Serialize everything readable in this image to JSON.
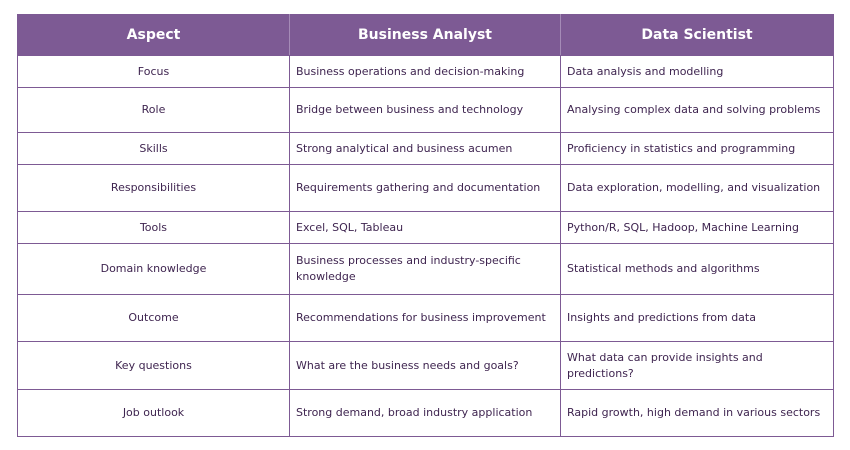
{
  "headers": [
    "Aspect",
    "Business Analyst",
    "Data Scientist"
  ],
  "rows": [
    {
      "aspect": "Focus",
      "business_analyst": "Business operations and decision-making",
      "data_scientist": "Data analysis and modelling"
    },
    {
      "aspect": "Role",
      "business_analyst": "Bridge between business and technology",
      "data_scientist": "Analysing complex data and solving problems"
    },
    {
      "aspect": "Skills",
      "business_analyst": "Strong analytical and business acumen",
      "data_scientist": "Proficiency in statistics and programming"
    },
    {
      "aspect": "Responsibilities",
      "business_analyst": "Requirements gathering and documentation",
      "data_scientist": "Data exploration, modelling, and visualization"
    },
    {
      "aspect": "Tools",
      "business_analyst": "Excel, SQL, Tableau",
      "data_scientist": "Python/R, SQL, Hadoop, Machine Learning"
    },
    {
      "aspect": "Domain knowledge",
      "business_analyst": "Business processes and industry-specific knowledge",
      "data_scientist": "Statistical methods and algorithms"
    },
    {
      "aspect": "Outcome",
      "business_analyst": "Recommendations for business improvement",
      "data_scientist": "Insights and predictions from data"
    },
    {
      "aspect": "Key questions",
      "business_analyst": "What are the business needs and goals?",
      "data_scientist": "What data can provide insights and predictions?"
    },
    {
      "aspect": "Job outlook",
      "business_analyst": "Strong demand, broad industry application",
      "data_scientist": "Rapid growth, high demand in various sectors"
    }
  ],
  "colors": {
    "header_background": "#7d5a94",
    "header_text": "#ffffff",
    "border": "#7d5a94",
    "body_text": "#3f2550"
  }
}
